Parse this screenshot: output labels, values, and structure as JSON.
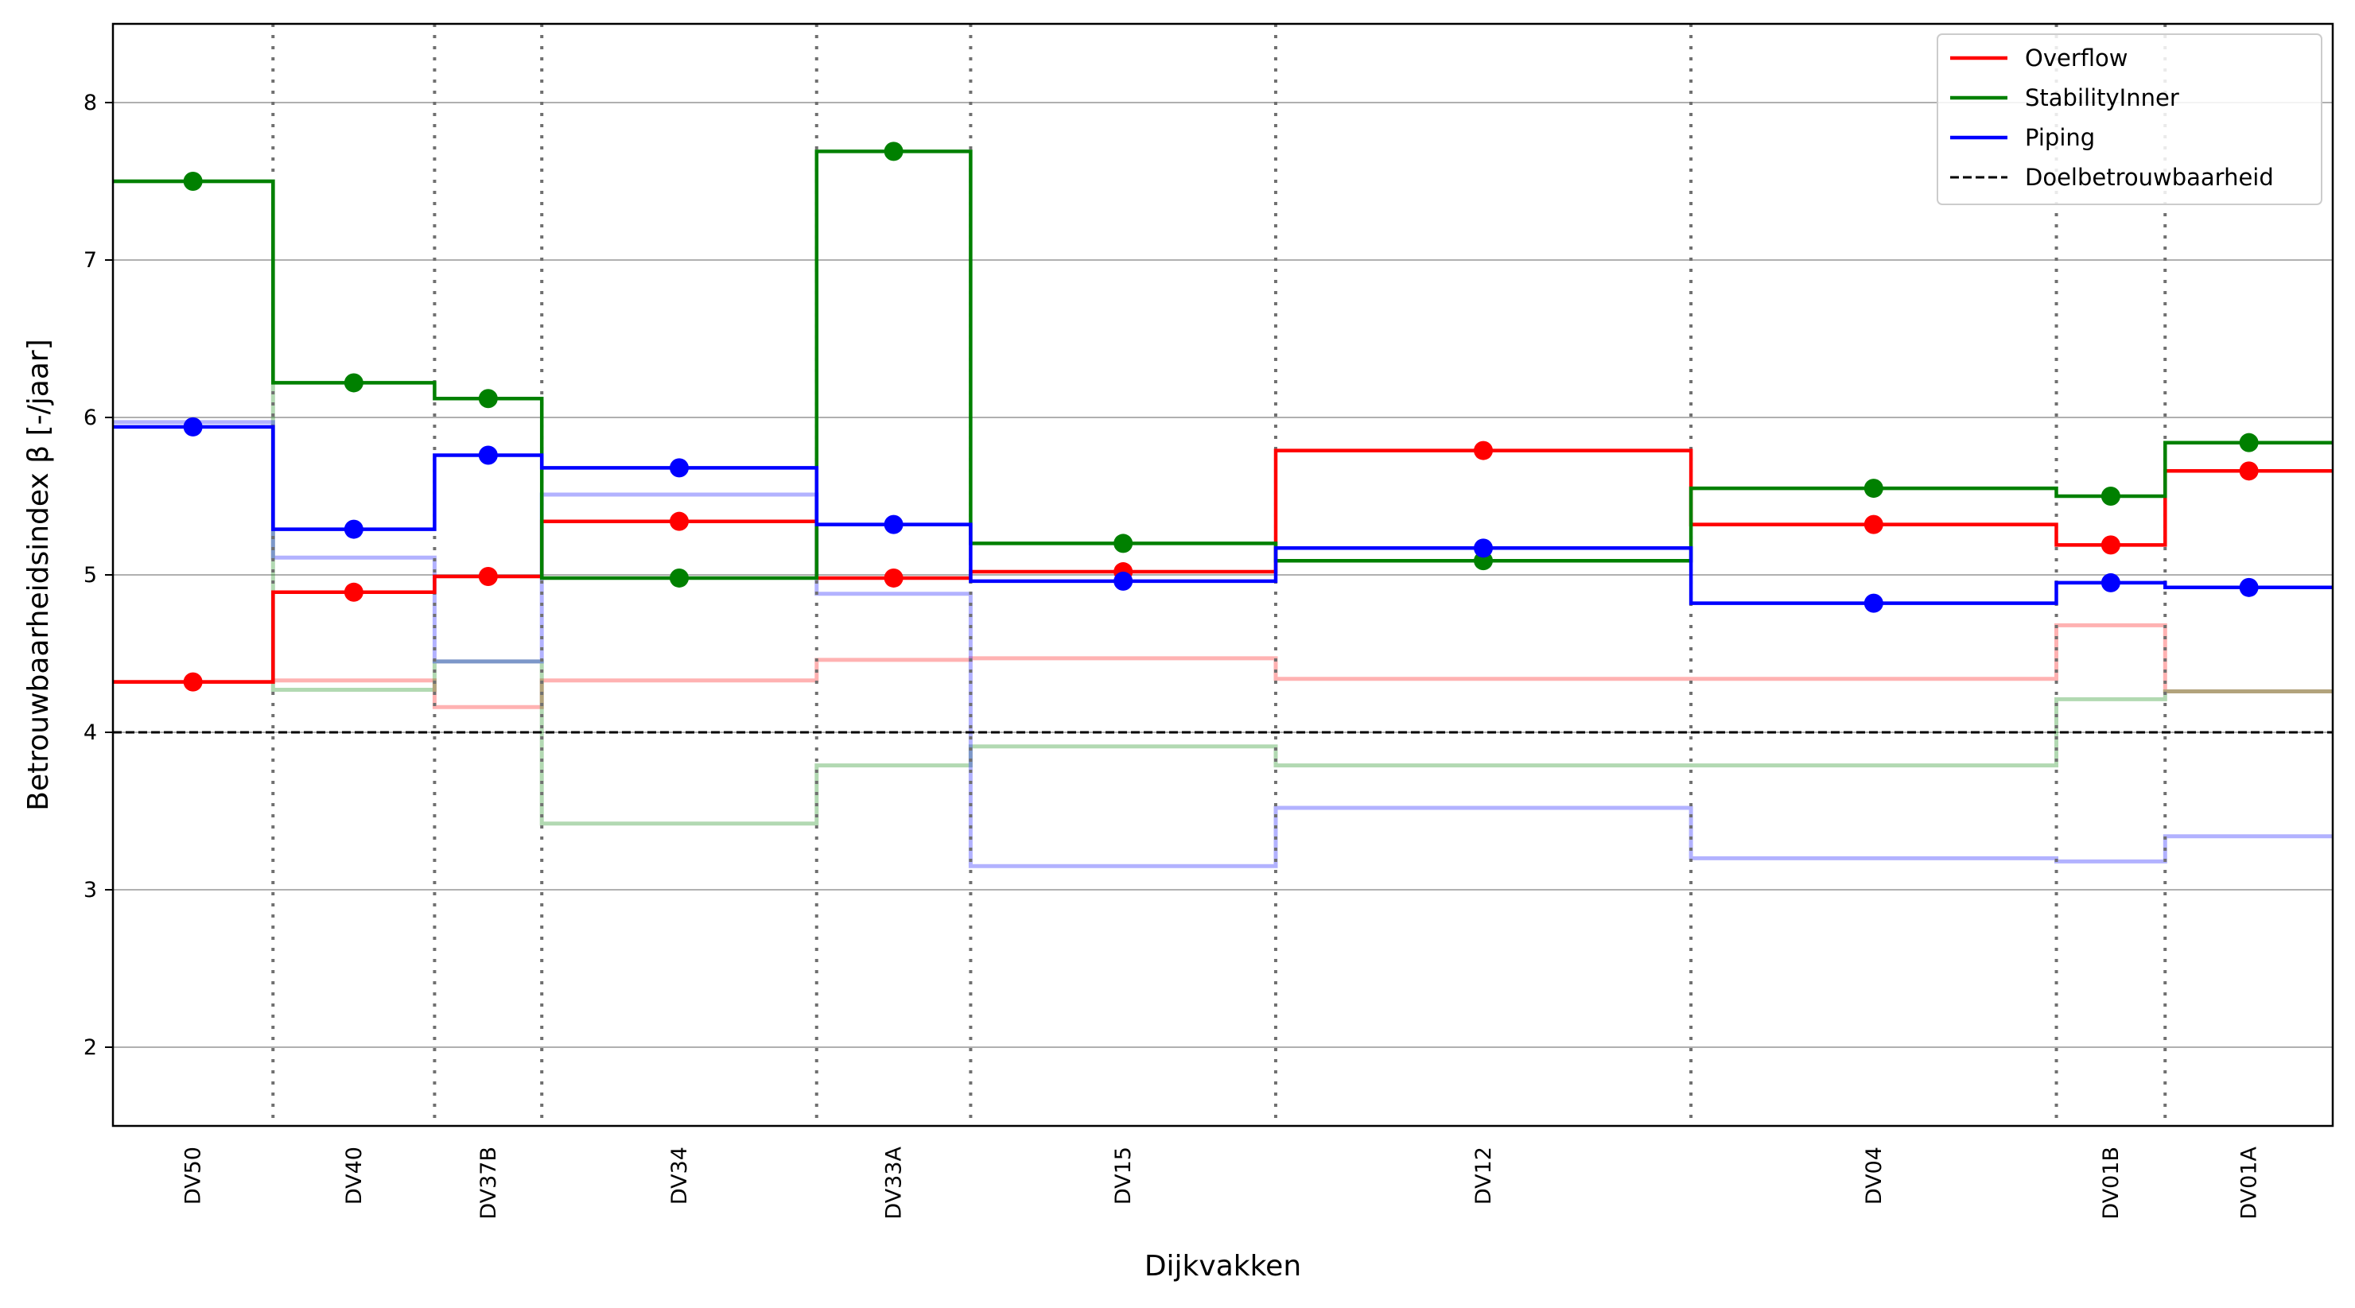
{
  "chart_data": {
    "type": "line",
    "step": true,
    "xlabel": "Dijkvakken",
    "ylabel": "Betrouwbaarheidsindex β [-/jaar]",
    "ylim": [
      1.5,
      8.5
    ],
    "yticks": [
      "2",
      "3",
      "4",
      "5",
      "6",
      "7",
      "8"
    ],
    "xlim": [
      0,
      1470
    ],
    "sections": [
      {
        "name": "DV50",
        "start": 0,
        "end": 106
      },
      {
        "name": "DV40",
        "start": 106,
        "end": 213
      },
      {
        "name": "DV37B",
        "start": 213,
        "end": 284
      },
      {
        "name": "DV34",
        "start": 284,
        "end": 466
      },
      {
        "name": "DV33A",
        "start": 466,
        "end": 568
      },
      {
        "name": "DV15",
        "start": 568,
        "end": 770
      },
      {
        "name": "DV12",
        "start": 770,
        "end": 1045
      },
      {
        "name": "DV04",
        "start": 1045,
        "end": 1287
      },
      {
        "name": "DV01B",
        "start": 1287,
        "end": 1359
      },
      {
        "name": "DV01A",
        "start": 1359,
        "end": 1470
      }
    ],
    "series": [
      {
        "name": "Overflow",
        "color": "#ff0000",
        "values": [
          4.32,
          4.89,
          4.99,
          5.34,
          4.98,
          5.02,
          5.79,
          5.32,
          5.19,
          5.66
        ]
      },
      {
        "name": "StabilityInner",
        "color": "#008000",
        "values": [
          7.5,
          6.22,
          6.12,
          4.98,
          7.69,
          5.2,
          5.09,
          5.55,
          5.5,
          5.84
        ]
      },
      {
        "name": "Piping",
        "color": "#0000ff",
        "values": [
          5.94,
          5.29,
          5.76,
          5.68,
          5.32,
          4.96,
          5.17,
          4.82,
          4.95,
          4.92
        ]
      }
    ],
    "initial_series": [
      {
        "name": "Overflow",
        "color": "#ff0000",
        "values": [
          4.32,
          4.33,
          4.16,
          4.33,
          4.46,
          4.47,
          4.34,
          4.34,
          4.68,
          4.26
        ]
      },
      {
        "name": "StabilityInner",
        "color": "#008000",
        "values": [
          7.5,
          4.27,
          4.45,
          3.42,
          3.79,
          3.91,
          3.79,
          3.79,
          4.21,
          4.26
        ]
      },
      {
        "name": "Piping",
        "color": "#0000ff",
        "values": [
          5.97,
          5.11,
          4.45,
          5.51,
          4.88,
          3.15,
          3.52,
          3.2,
          3.18,
          3.34
        ]
      }
    ],
    "target": {
      "name": "Doelbetrouwbaarheid",
      "value": 4.0
    },
    "legend": {
      "position": "top-right",
      "entries": [
        "Overflow",
        "StabilityInner",
        "Piping",
        "Doelbetrouwbaarheid"
      ]
    }
  }
}
